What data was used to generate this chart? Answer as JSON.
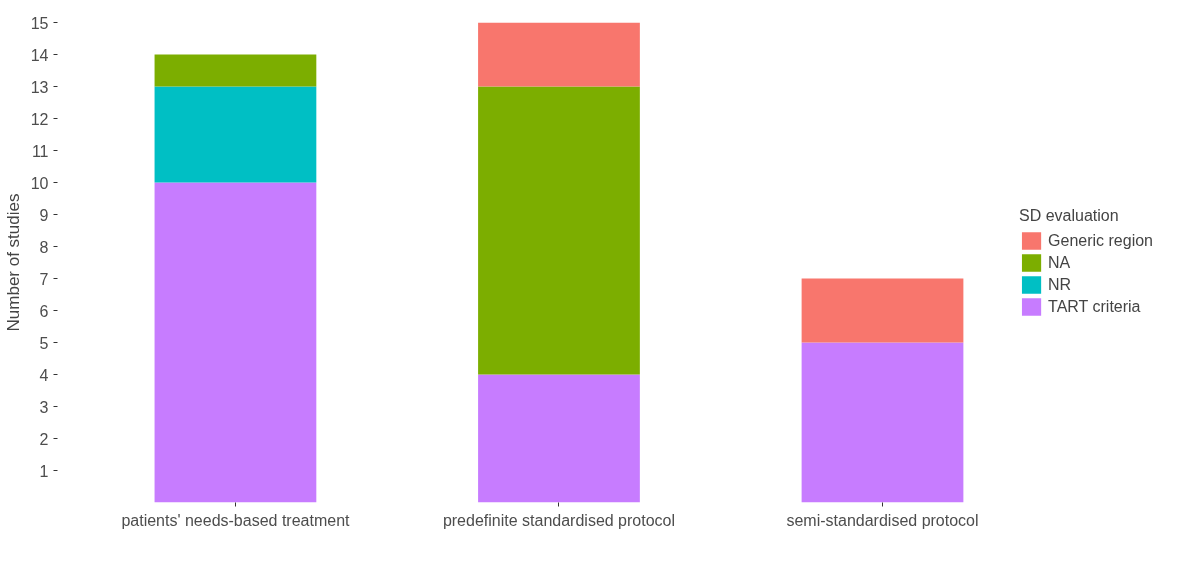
{
  "chart_data": {
    "type": "bar",
    "stacked": true,
    "ylabel": "Number of studies",
    "legend_title": "SD evaluation",
    "categories": [
      "patients' needs-based treatment",
      "predefinite standardised protocol",
      "semi-standardised protocol"
    ],
    "series": [
      {
        "name": "TART criteria",
        "color": "#c77cff",
        "values": [
          10,
          4,
          5
        ]
      },
      {
        "name": "NR",
        "color": "#00bfc4",
        "values": [
          3,
          0,
          0
        ]
      },
      {
        "name": "NA",
        "color": "#7cae00",
        "values": [
          1,
          9,
          0
        ]
      },
      {
        "name": "Generic region",
        "color": "#f8766d",
        "values": [
          0,
          2,
          2
        ]
      }
    ],
    "ylim": [
      0,
      15
    ],
    "yticks": [
      1,
      2,
      3,
      4,
      5,
      6,
      7,
      8,
      9,
      10,
      11,
      12,
      13,
      14,
      15
    ],
    "grid": false,
    "legend": "right"
  }
}
